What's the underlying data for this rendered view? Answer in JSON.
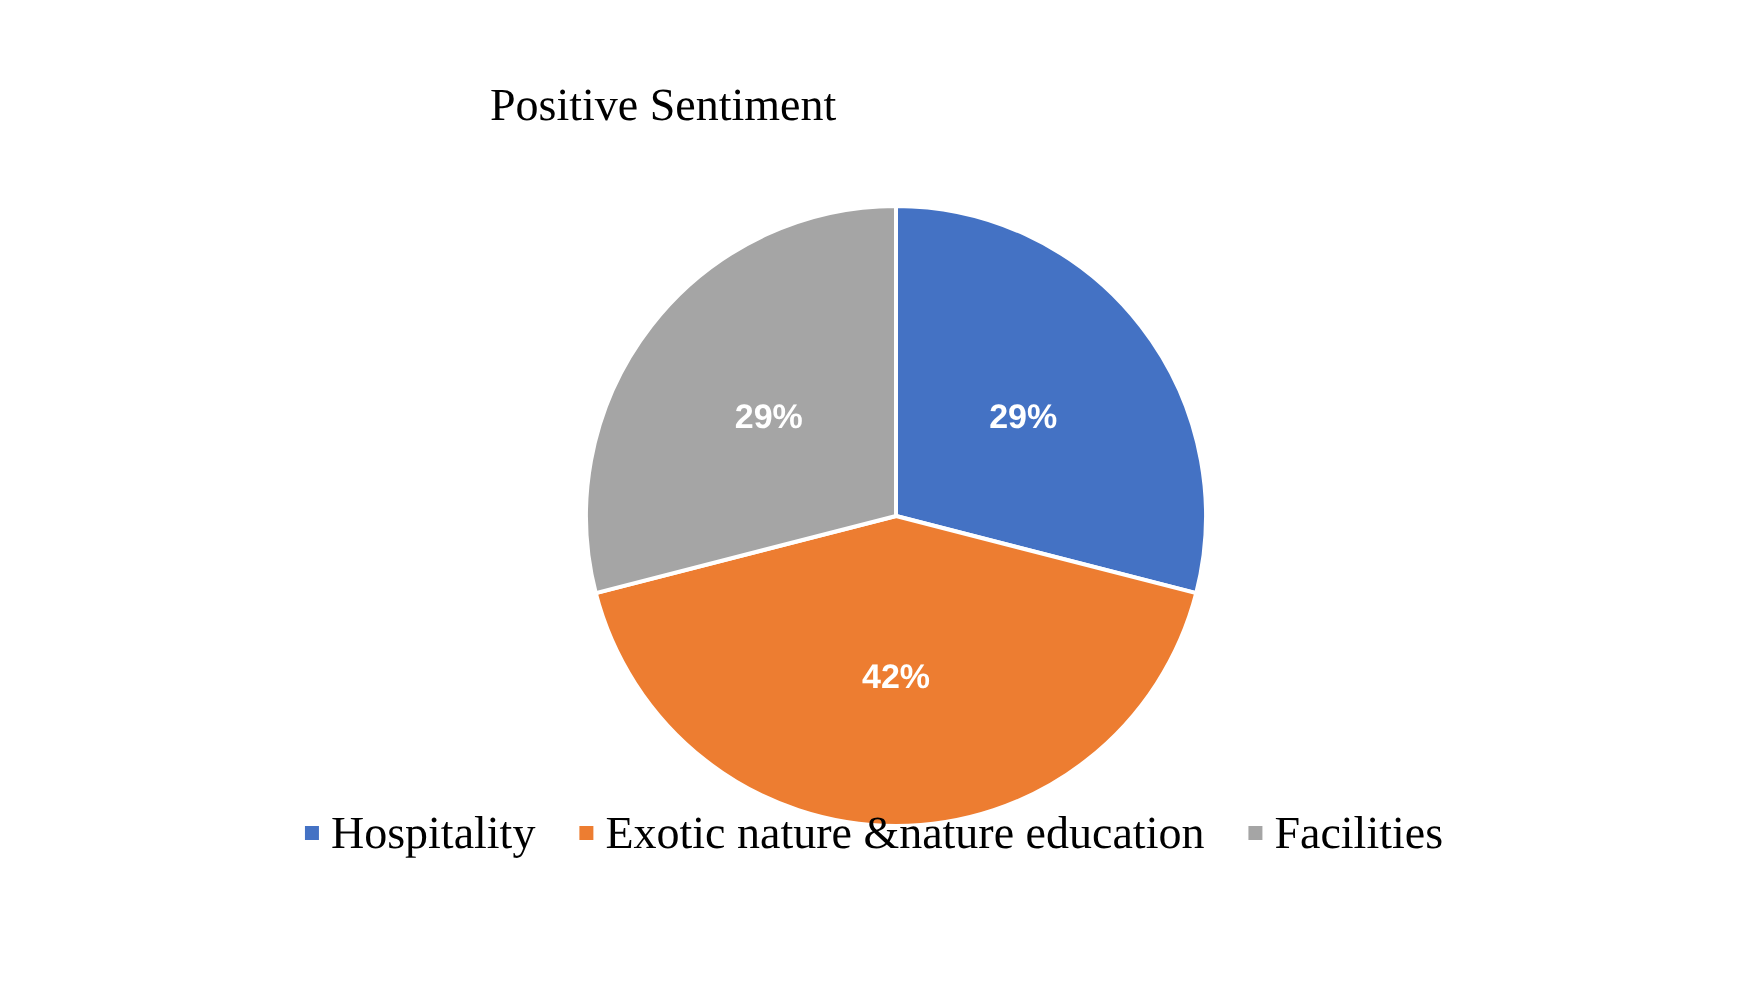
{
  "chart_data": {
    "type": "pie",
    "title": "Positive Sentiment",
    "categories": [
      "Hospitality",
      "Exotic nature &nature education",
      "Facilities"
    ],
    "values": [
      29,
      42,
      29
    ],
    "colors": [
      "#4472c4",
      "#ed7d31",
      "#a5a5a5"
    ],
    "value_labels": [
      "29%",
      "42%",
      "29%"
    ],
    "legend": "bottom"
  }
}
